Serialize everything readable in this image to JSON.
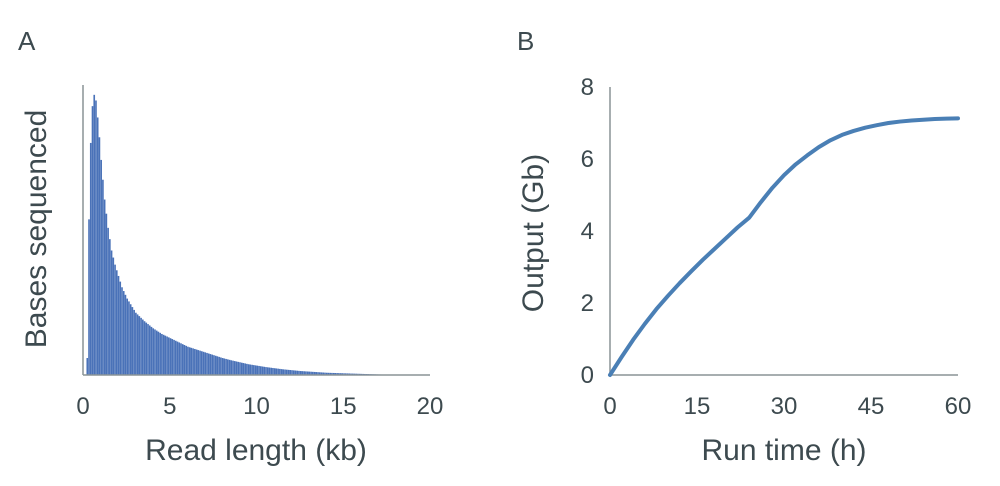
{
  "chart_data": [
    {
      "panel_label": "A",
      "type": "bar",
      "xlabel": "Read length (kb)",
      "ylabel": "Bases sequenced",
      "xlim": [
        0,
        20
      ],
      "xticks": [
        "0",
        "5",
        "10",
        "15",
        "20"
      ],
      "y_tick_labels_shown": false,
      "series_color": "#4a72b8",
      "bin_width_kb": 0.1,
      "x": [
        0.2,
        0.3,
        0.4,
        0.5,
        0.6,
        0.7,
        0.8,
        0.9,
        1.0,
        1.1,
        1.2,
        1.3,
        1.4,
        1.5,
        1.6,
        1.8,
        2.0,
        2.2,
        2.5,
        2.8,
        3.0,
        3.5,
        4.0,
        4.5,
        5.0,
        5.5,
        6.0,
        6.5,
        7.0,
        7.5,
        8.0,
        8.5,
        9.0,
        9.5,
        10.0,
        10.5,
        11.0,
        11.5,
        12.0,
        12.5,
        13.0,
        13.5,
        14.0,
        14.5,
        15.0,
        15.5,
        16.0,
        16.5,
        17.0,
        17.5,
        18.0
      ],
      "y": [
        0.06,
        0.55,
        0.82,
        0.95,
        0.99,
        0.97,
        0.91,
        0.84,
        0.76,
        0.69,
        0.62,
        0.57,
        0.52,
        0.48,
        0.44,
        0.39,
        0.35,
        0.31,
        0.27,
        0.24,
        0.22,
        0.19,
        0.165,
        0.145,
        0.13,
        0.115,
        0.1,
        0.09,
        0.08,
        0.07,
        0.06,
        0.052,
        0.045,
        0.038,
        0.033,
        0.028,
        0.024,
        0.02,
        0.017,
        0.014,
        0.012,
        0.01,
        0.008,
        0.007,
        0.006,
        0.005,
        0.004,
        0.003,
        0.002,
        0.0015,
        0.001
      ]
    },
    {
      "panel_label": "B",
      "type": "line",
      "xlabel": "Run time (h)",
      "ylabel": "Output (Gb)",
      "xlim": [
        0,
        60
      ],
      "ylim": [
        0,
        8
      ],
      "xticks": [
        "0",
        "15",
        "30",
        "45",
        "60"
      ],
      "yticks": [
        "0",
        "2",
        "4",
        "6",
        "8"
      ],
      "series_color": "#4a7fb5",
      "x": [
        0,
        2,
        4,
        6,
        8,
        10,
        12,
        14,
        16,
        18,
        20,
        22,
        24,
        26,
        28,
        30,
        32,
        34,
        36,
        38,
        40,
        42,
        44,
        46,
        48,
        50,
        52,
        54,
        56,
        58,
        60
      ],
      "y": [
        0,
        0.5,
        0.98,
        1.42,
        1.83,
        2.2,
        2.55,
        2.88,
        3.2,
        3.5,
        3.8,
        4.1,
        4.37,
        4.8,
        5.2,
        5.55,
        5.85,
        6.1,
        6.33,
        6.52,
        6.67,
        6.78,
        6.87,
        6.94,
        7.0,
        7.04,
        7.07,
        7.09,
        7.11,
        7.12,
        7.13
      ]
    }
  ]
}
